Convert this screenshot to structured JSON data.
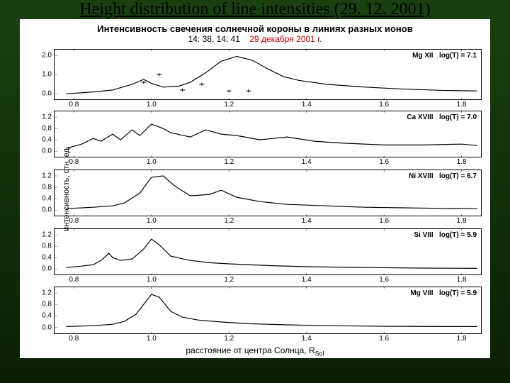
{
  "slide_title": "Height distribution of line intensities (29. 12. 2001)",
  "chart": {
    "title": "Интенсивность свечения солнечной короны в линиях разных ионов",
    "subtitle_black": "14: 38, 14: 41",
    "subtitle_red": "29 декабря 2001 г.",
    "ylabel": "интенсивность, отн. ед.",
    "xlabel_prefix": "расстояние от центра Солнца,  R",
    "xlabel_sub": "Sol",
    "xlim": [
      0.75,
      1.85
    ],
    "xticks": [
      0.8,
      1.0,
      1.2,
      1.4,
      1.6,
      1.8
    ],
    "line_color": "#000000",
    "marker_color": "#000000",
    "background_color": "#ffffff",
    "border_color": "#000000",
    "tick_fontsize": 10,
    "label_fontsize": 12,
    "title_fontsize": 13,
    "panels": [
      {
        "ion": "Mg XII",
        "logT": "log(T) = 7.1",
        "top_pct": 0,
        "height_pct": 17.5,
        "ylim": [
          -0.3,
          2.3
        ],
        "yticks": [
          0.0,
          1.0,
          2.0
        ],
        "show_markers": true,
        "markers": [
          [
            0.98,
            0.6
          ],
          [
            1.02,
            1.0
          ],
          [
            1.08,
            0.2
          ],
          [
            1.13,
            0.5
          ],
          [
            1.2,
            0.15
          ],
          [
            1.25,
            0.15
          ]
        ],
        "data": [
          [
            0.78,
            0.0
          ],
          [
            0.85,
            0.1
          ],
          [
            0.9,
            0.2
          ],
          [
            0.95,
            0.5
          ],
          [
            0.98,
            0.75
          ],
          [
            1.0,
            0.55
          ],
          [
            1.03,
            0.35
          ],
          [
            1.07,
            0.4
          ],
          [
            1.1,
            0.6
          ],
          [
            1.14,
            1.1
          ],
          [
            1.18,
            1.7
          ],
          [
            1.22,
            1.95
          ],
          [
            1.26,
            1.75
          ],
          [
            1.3,
            1.3
          ],
          [
            1.34,
            0.9
          ],
          [
            1.38,
            0.7
          ],
          [
            1.45,
            0.5
          ],
          [
            1.55,
            0.35
          ],
          [
            1.65,
            0.25
          ],
          [
            1.75,
            0.18
          ],
          [
            1.84,
            0.15
          ]
        ]
      },
      {
        "ion": "Ca XVIII",
        "logT": "log(T) = 7.0",
        "top_pct": 21,
        "height_pct": 16,
        "ylim": [
          -0.2,
          1.4
        ],
        "yticks": [
          0.0,
          0.4,
          0.8,
          1.2
        ],
        "show_markers": false,
        "data": [
          [
            0.78,
            0.1
          ],
          [
            0.82,
            0.25
          ],
          [
            0.85,
            0.45
          ],
          [
            0.87,
            0.35
          ],
          [
            0.9,
            0.6
          ],
          [
            0.92,
            0.4
          ],
          [
            0.95,
            0.75
          ],
          [
            0.97,
            0.55
          ],
          [
            1.0,
            0.95
          ],
          [
            1.03,
            0.8
          ],
          [
            1.05,
            0.65
          ],
          [
            1.1,
            0.5
          ],
          [
            1.14,
            0.75
          ],
          [
            1.18,
            0.6
          ],
          [
            1.22,
            0.55
          ],
          [
            1.28,
            0.4
          ],
          [
            1.35,
            0.5
          ],
          [
            1.42,
            0.35
          ],
          [
            1.5,
            0.28
          ],
          [
            1.6,
            0.22
          ],
          [
            1.7,
            0.22
          ],
          [
            1.8,
            0.25
          ],
          [
            1.84,
            0.2
          ]
        ]
      },
      {
        "ion": "Ni XVIII",
        "logT": "log(T) = 6.7",
        "top_pct": 41,
        "height_pct": 16,
        "ylim": [
          -0.2,
          1.4
        ],
        "yticks": [
          0.0,
          0.4,
          0.8,
          1.2
        ],
        "show_markers": false,
        "data": [
          [
            0.78,
            0.05
          ],
          [
            0.85,
            0.1
          ],
          [
            0.9,
            0.15
          ],
          [
            0.93,
            0.25
          ],
          [
            0.97,
            0.6
          ],
          [
            1.0,
            1.15
          ],
          [
            1.03,
            1.2
          ],
          [
            1.06,
            0.85
          ],
          [
            1.1,
            0.5
          ],
          [
            1.15,
            0.55
          ],
          [
            1.18,
            0.7
          ],
          [
            1.22,
            0.45
          ],
          [
            1.28,
            0.3
          ],
          [
            1.35,
            0.2
          ],
          [
            1.45,
            0.15
          ],
          [
            1.55,
            0.1
          ],
          [
            1.65,
            0.08
          ],
          [
            1.75,
            0.06
          ],
          [
            1.84,
            0.05
          ]
        ]
      },
      {
        "ion": "Si VIII",
        "logT": "log(T) = 5.9",
        "top_pct": 61,
        "height_pct": 16,
        "ylim": [
          -0.2,
          1.4
        ],
        "yticks": [
          0.0,
          0.4,
          0.8,
          1.2
        ],
        "show_markers": false,
        "data": [
          [
            0.78,
            0.05
          ],
          [
            0.82,
            0.1
          ],
          [
            0.85,
            0.15
          ],
          [
            0.87,
            0.3
          ],
          [
            0.89,
            0.55
          ],
          [
            0.9,
            0.4
          ],
          [
            0.92,
            0.3
          ],
          [
            0.95,
            0.35
          ],
          [
            0.98,
            0.7
          ],
          [
            1.0,
            1.05
          ],
          [
            1.02,
            0.85
          ],
          [
            1.05,
            0.45
          ],
          [
            1.1,
            0.3
          ],
          [
            1.15,
            0.22
          ],
          [
            1.2,
            0.18
          ],
          [
            1.3,
            0.12
          ],
          [
            1.4,
            0.08
          ],
          [
            1.55,
            0.05
          ],
          [
            1.7,
            0.03
          ],
          [
            1.84,
            0.02
          ]
        ]
      },
      {
        "ion": "Mg VIII",
        "logT": "log(T) = 5.9",
        "top_pct": 81,
        "height_pct": 16,
        "ylim": [
          -0.2,
          1.4
        ],
        "yticks": [
          0.0,
          0.4,
          0.8,
          1.2
        ],
        "show_markers": false,
        "data": [
          [
            0.78,
            0.02
          ],
          [
            0.85,
            0.05
          ],
          [
            0.9,
            0.1
          ],
          [
            0.93,
            0.2
          ],
          [
            0.96,
            0.45
          ],
          [
            0.98,
            0.8
          ],
          [
            1.0,
            1.15
          ],
          [
            1.02,
            1.05
          ],
          [
            1.05,
            0.55
          ],
          [
            1.08,
            0.35
          ],
          [
            1.12,
            0.25
          ],
          [
            1.18,
            0.18
          ],
          [
            1.25,
            0.12
          ],
          [
            1.35,
            0.08
          ],
          [
            1.45,
            0.05
          ],
          [
            1.6,
            0.03
          ],
          [
            1.75,
            0.02
          ],
          [
            1.84,
            0.02
          ]
        ]
      }
    ]
  }
}
